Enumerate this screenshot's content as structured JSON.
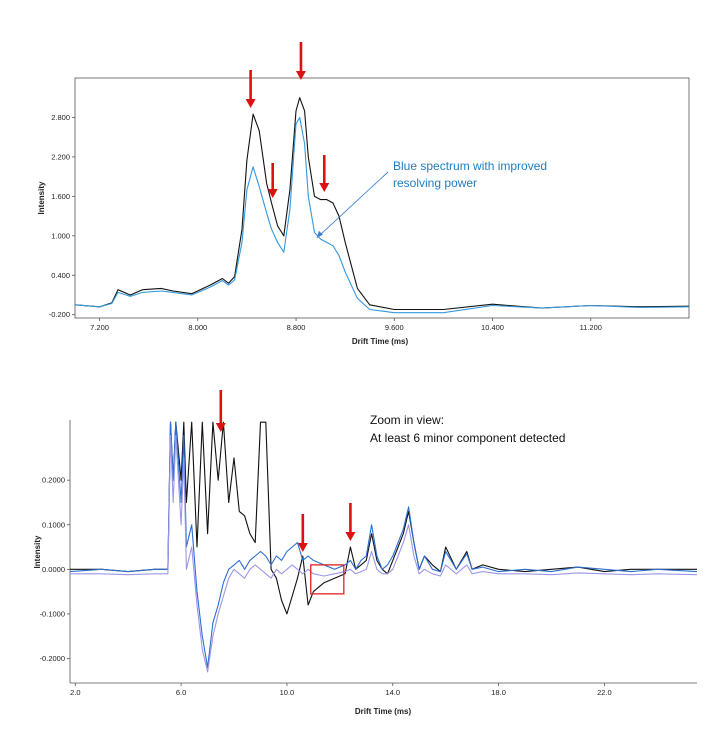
{
  "chart_data": [
    {
      "type": "line",
      "xlabel": "Drift Time (ms)",
      "ylabel": "Intensity",
      "xlim": [
        7.0,
        12.0
      ],
      "ylim": [
        -0.25,
        3.4
      ],
      "x_ticks": [
        "7.200",
        "8.000",
        "8.800",
        "9.600",
        "10.400",
        "11.200"
      ],
      "y_ticks": [
        "-0.200",
        "0.400",
        "1.000",
        "1.600",
        "2.200",
        "2.800"
      ],
      "series": [
        {
          "color": "#111111",
          "x": [
            7.0,
            7.2,
            7.3,
            7.35,
            7.45,
            7.55,
            7.7,
            7.8,
            7.95,
            8.1,
            8.2,
            8.25,
            8.3,
            8.36,
            8.4,
            8.45,
            8.5,
            8.56,
            8.6,
            8.65,
            8.7,
            8.75,
            8.8,
            8.83,
            8.87,
            8.9,
            8.95,
            9.0,
            9.05,
            9.1,
            9.15,
            9.2,
            9.3,
            9.4,
            9.6,
            10.0,
            10.4,
            10.8,
            11.2,
            11.6,
            12.0
          ],
          "y": [
            -0.05,
            -0.08,
            -0.02,
            0.18,
            0.1,
            0.18,
            0.2,
            0.16,
            0.12,
            0.25,
            0.35,
            0.28,
            0.38,
            1.1,
            2.15,
            2.85,
            2.6,
            1.8,
            1.5,
            1.15,
            1.0,
            1.7,
            2.9,
            3.1,
            2.9,
            2.2,
            1.6,
            1.55,
            1.55,
            1.5,
            1.3,
            0.9,
            0.2,
            -0.05,
            -0.12,
            -0.12,
            -0.04,
            -0.1,
            -0.06,
            -0.08,
            -0.07
          ]
        },
        {
          "color": "#3399dd",
          "x": [
            7.0,
            7.2,
            7.3,
            7.35,
            7.45,
            7.55,
            7.7,
            7.8,
            7.95,
            8.1,
            8.2,
            8.25,
            8.3,
            8.36,
            8.4,
            8.45,
            8.5,
            8.56,
            8.6,
            8.65,
            8.7,
            8.75,
            8.8,
            8.83,
            8.87,
            8.9,
            8.95,
            9.0,
            9.05,
            9.1,
            9.15,
            9.2,
            9.3,
            9.4,
            9.6,
            10.0,
            10.4,
            10.8,
            11.2,
            11.6,
            12.0
          ],
          "y": [
            -0.05,
            -0.08,
            -0.03,
            0.14,
            0.08,
            0.14,
            0.16,
            0.14,
            0.1,
            0.22,
            0.32,
            0.25,
            0.33,
            0.9,
            1.7,
            2.05,
            1.75,
            1.35,
            1.1,
            0.9,
            0.75,
            1.4,
            2.7,
            2.8,
            2.4,
            1.6,
            1.05,
            0.95,
            0.9,
            0.85,
            0.7,
            0.45,
            0.05,
            -0.12,
            -0.17,
            -0.17,
            -0.06,
            -0.1,
            -0.06,
            -0.09,
            -0.08
          ]
        }
      ],
      "markers": [
        8.43,
        8.61,
        8.84,
        9.03
      ],
      "annotation": {
        "lines": [
          "Blue spectrum with improved",
          "resolving power"
        ],
        "arrow_target": [
          8.97,
          0.97
        ]
      }
    },
    {
      "type": "line",
      "xlabel": "Drift Time (ms)",
      "ylabel": "Intensity",
      "xlim": [
        1.8,
        25.5
      ],
      "ylim": [
        -0.255,
        0.335
      ],
      "x_ticks": [
        "2.0",
        "6.0",
        "10.0",
        "14.0",
        "18.0",
        "22.0"
      ],
      "y_ticks": [
        "-0.2000",
        "-0.1000",
        "0.0000",
        "0.1000",
        "0.2000"
      ],
      "series": [
        {
          "color": "#111111",
          "x": [
            1.8,
            3.0,
            4.0,
            5.0,
            5.5,
            5.6,
            5.7,
            5.8,
            6.0,
            6.1,
            6.2,
            6.4,
            6.6,
            6.8,
            7.0,
            7.2,
            7.4,
            7.6,
            7.8,
            8.0,
            8.2,
            8.4,
            8.6,
            8.8,
            9.0,
            9.2,
            9.4,
            9.6,
            9.8,
            10.0,
            10.2,
            10.4,
            10.6,
            10.8,
            11.0,
            11.4,
            11.8,
            12.2,
            12.4,
            12.6,
            12.8,
            13.0,
            13.2,
            13.4,
            13.6,
            13.8,
            14.0,
            14.2,
            14.4,
            14.6,
            14.8,
            15.0,
            15.2,
            15.5,
            15.8,
            16.0,
            16.4,
            16.8,
            17.0,
            17.4,
            18.0,
            19.0,
            20.0,
            21.0,
            22.0,
            23.0,
            24.0,
            25.5
          ],
          "y": [
            0.0,
            0.0,
            -0.005,
            0.0,
            0.0,
            0.33,
            0.2,
            0.33,
            0.2,
            0.33,
            0.15,
            0.33,
            0.05,
            0.33,
            0.08,
            0.33,
            0.2,
            0.33,
            0.15,
            0.25,
            0.13,
            0.12,
            0.08,
            0.06,
            0.33,
            0.33,
            0.0,
            -0.02,
            -0.07,
            -0.1,
            -0.06,
            -0.02,
            0.03,
            -0.08,
            -0.05,
            -0.03,
            -0.02,
            -0.01,
            0.05,
            0.0,
            0.01,
            0.02,
            0.08,
            0.02,
            0.0,
            -0.01,
            0.02,
            0.05,
            0.08,
            0.13,
            0.06,
            0.0,
            0.03,
            0.01,
            -0.005,
            0.05,
            0.0,
            0.04,
            0.0,
            0.01,
            0.0,
            -0.005,
            0.0,
            0.005,
            -0.005,
            0.0,
            0.0,
            0.0
          ]
        },
        {
          "color": "#2a6fd0",
          "x": [
            1.8,
            3.0,
            4.0,
            5.0,
            5.5,
            5.6,
            5.7,
            5.8,
            6.0,
            6.1,
            6.2,
            6.4,
            6.6,
            6.8,
            7.0,
            7.2,
            7.4,
            7.6,
            7.8,
            8.0,
            8.2,
            8.4,
            8.6,
            8.8,
            9.0,
            9.2,
            9.4,
            9.6,
            9.8,
            10.0,
            10.2,
            10.4,
            10.6,
            10.8,
            11.0,
            11.4,
            11.8,
            12.2,
            12.4,
            12.6,
            12.8,
            13.0,
            13.2,
            13.4,
            13.6,
            13.8,
            14.0,
            14.2,
            14.4,
            14.6,
            14.8,
            15.0,
            15.2,
            15.5,
            15.8,
            16.0,
            16.4,
            16.8,
            17.0,
            17.4,
            18.0,
            19.0,
            20.0,
            21.0,
            22.0,
            23.0,
            24.0,
            25.5
          ],
          "y": [
            -0.005,
            0.0,
            -0.005,
            0.0,
            0.0,
            0.33,
            0.2,
            0.33,
            0.15,
            0.3,
            0.05,
            0.1,
            -0.05,
            -0.15,
            -0.22,
            -0.12,
            -0.08,
            -0.03,
            0.0,
            0.01,
            0.02,
            0.0,
            0.02,
            0.03,
            0.04,
            0.03,
            0.01,
            0.03,
            0.02,
            0.04,
            0.05,
            0.06,
            0.02,
            0.03,
            0.02,
            0.01,
            0.0,
            0.01,
            0.02,
            0.0,
            0.02,
            0.03,
            0.1,
            0.03,
            0.0,
            0.01,
            0.03,
            0.06,
            0.09,
            0.14,
            0.06,
            0.0,
            0.03,
            0.0,
            -0.005,
            0.04,
            0.0,
            0.035,
            0.0,
            0.005,
            -0.005,
            0.0,
            -0.005,
            0.005,
            0.0,
            -0.005,
            0.0,
            -0.005
          ]
        },
        {
          "color": "#9b97e8",
          "x": [
            1.8,
            3.0,
            4.0,
            5.0,
            5.5,
            5.6,
            5.7,
            5.8,
            6.0,
            6.1,
            6.2,
            6.4,
            6.6,
            6.8,
            7.0,
            7.2,
            7.4,
            7.6,
            7.8,
            8.0,
            8.2,
            8.4,
            8.6,
            8.8,
            9.0,
            9.2,
            9.4,
            9.6,
            9.8,
            10.0,
            10.2,
            10.4,
            10.6,
            10.8,
            11.0,
            11.4,
            11.8,
            12.2,
            12.4,
            12.6,
            12.8,
            13.0,
            13.2,
            13.4,
            13.6,
            13.8,
            14.0,
            14.2,
            14.4,
            14.6,
            14.8,
            15.0,
            15.2,
            15.5,
            15.8,
            16.0,
            16.4,
            16.8,
            17.0,
            17.4,
            18.0,
            19.0,
            20.0,
            21.0,
            22.0,
            23.0,
            24.0,
            25.5
          ],
          "y": [
            -0.01,
            -0.01,
            -0.012,
            -0.01,
            -0.01,
            0.3,
            0.15,
            0.3,
            0.1,
            0.25,
            0.0,
            0.05,
            -0.08,
            -0.18,
            -0.23,
            -0.15,
            -0.1,
            -0.06,
            -0.02,
            0.0,
            -0.01,
            -0.02,
            0.0,
            0.01,
            0.0,
            -0.01,
            -0.02,
            0.0,
            -0.01,
            0.0,
            0.01,
            0.0,
            -0.01,
            0.0,
            -0.01,
            -0.015,
            -0.01,
            -0.005,
            0.0,
            -0.01,
            -0.005,
            0.0,
            0.04,
            0.0,
            -0.01,
            -0.01,
            0.0,
            0.03,
            0.06,
            0.1,
            0.03,
            -0.01,
            0.0,
            -0.01,
            -0.015,
            0.01,
            -0.01,
            0.01,
            -0.01,
            -0.005,
            -0.01,
            -0.01,
            -0.012,
            -0.008,
            -0.01,
            -0.012,
            -0.01,
            -0.012
          ]
        }
      ],
      "markers": [
        7.5,
        10.6,
        12.4
      ],
      "highlight_box": {
        "x0": 10.9,
        "x1": 12.15,
        "y0": -0.055,
        "y1": 0.01
      },
      "annotation": {
        "lines": [
          "Zoom in view:",
          "At least 6 minor component detected"
        ]
      }
    }
  ]
}
